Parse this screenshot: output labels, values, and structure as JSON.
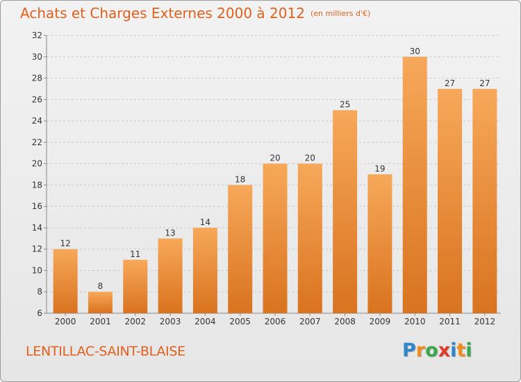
{
  "title": "Achats et Charges Externes 2000 à 2012",
  "unit": "(en milliers d'€)",
  "commune": "LENTILLAC-SAINT-BLAISE",
  "logo": {
    "letters": [
      "P",
      "r",
      "o",
      "x",
      "i",
      "t",
      "i"
    ],
    "colors": [
      "#2f86c8",
      "#f08c1e",
      "#3aa84a",
      "#e23a2a",
      "#2f86c8",
      "#f08c1e",
      "#3aa84a"
    ]
  },
  "colors": {
    "bar_light": "#f7a85a",
    "bar_dark": "#d9731f",
    "text": "#e0601c",
    "axis": "#888888"
  },
  "chart_data": {
    "type": "bar",
    "categories": [
      "2000",
      "2001",
      "2002",
      "2003",
      "2004",
      "2005",
      "2006",
      "2007",
      "2008",
      "2009",
      "2010",
      "2011",
      "2012"
    ],
    "values": [
      12,
      8,
      11,
      13,
      14,
      18,
      20,
      20,
      25,
      19,
      30,
      27,
      27
    ],
    "ylim": [
      6,
      32
    ],
    "yticks": [
      6,
      8,
      10,
      12,
      14,
      16,
      18,
      20,
      22,
      24,
      26,
      28,
      30,
      32
    ],
    "grid": true
  }
}
